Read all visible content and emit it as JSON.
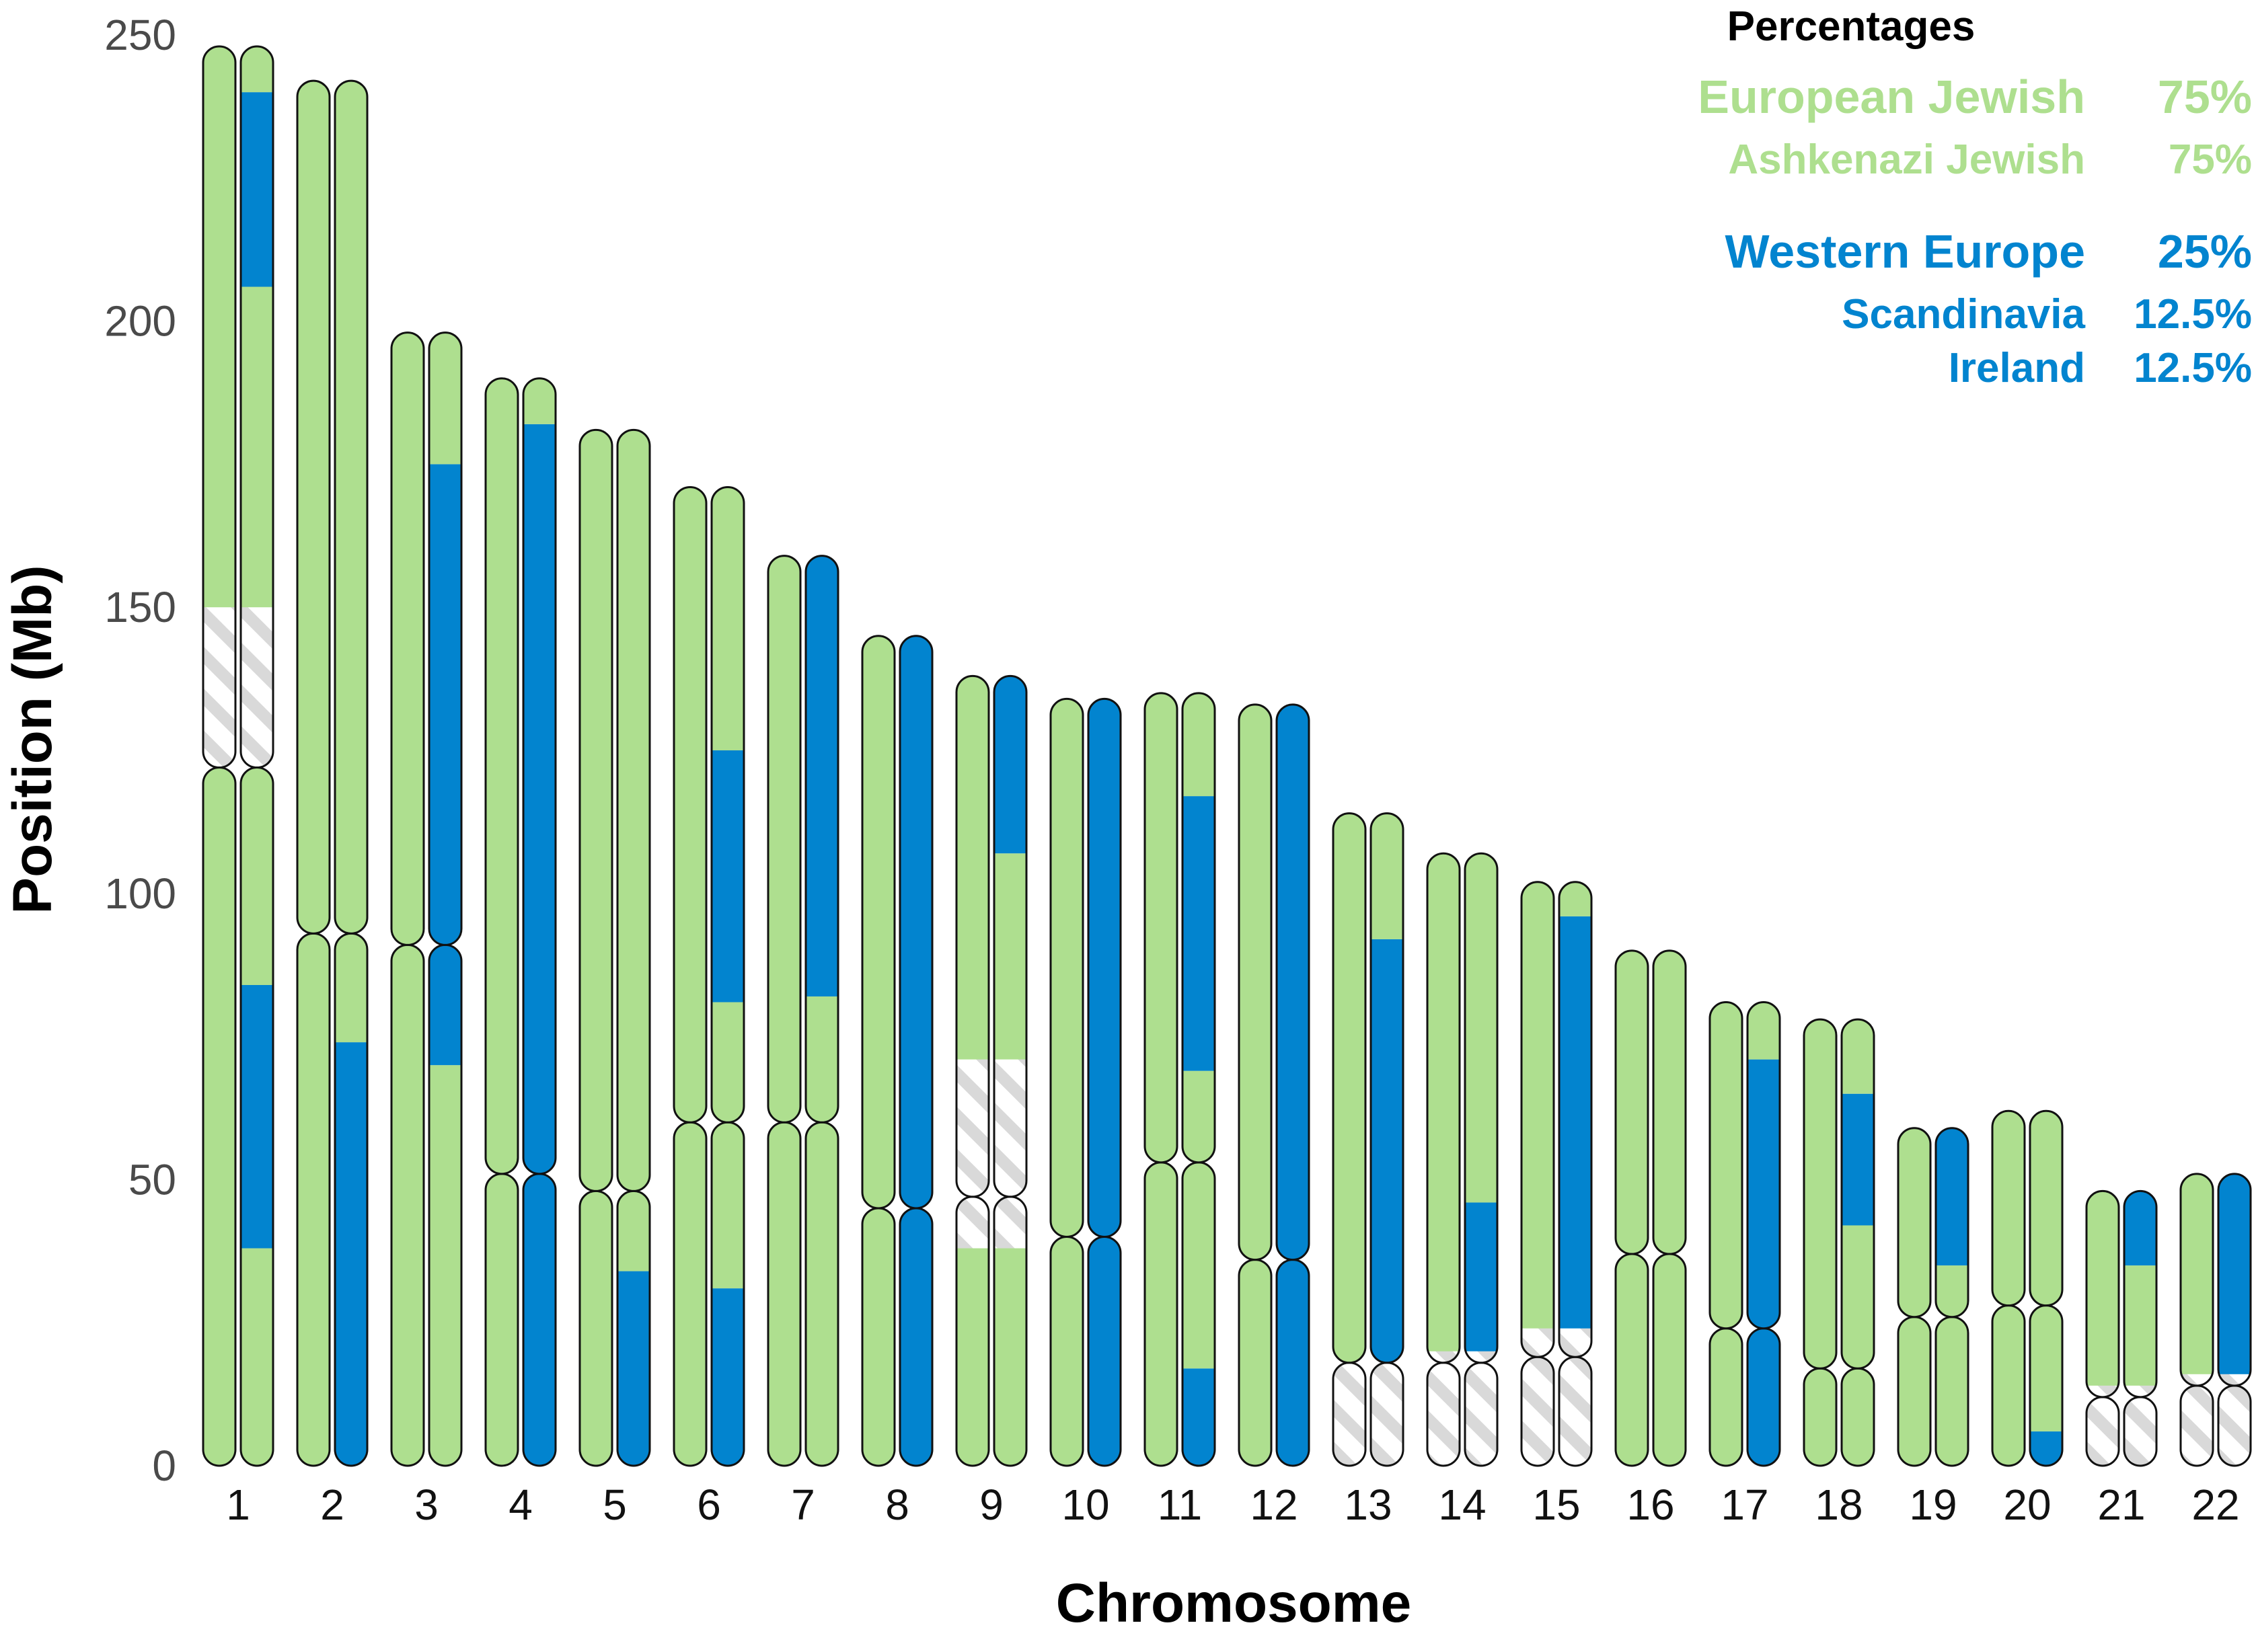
{
  "colors": {
    "european_jewish": "#aedf8f",
    "western_europe": "#0284cf",
    "unassigned_stripe": "#d9d9d9",
    "outline": "#111111",
    "tick_text": "#4a4a4a"
  },
  "chart_data": {
    "type": "chromosome-painting",
    "title": "",
    "xlabel": "Chromosome",
    "ylabel": "Position (Mb)",
    "ylim": [
      0,
      250
    ],
    "yticks": [
      "0",
      "50",
      "100",
      "150",
      "200",
      "250"
    ],
    "legend": {
      "title": "Percentages",
      "placement": "top-right",
      "groups": [
        {
          "color_key": "european_jewish",
          "entries": [
            {
              "label": "European Jewish",
              "value": "75%",
              "level": "region"
            },
            {
              "label": "Ashkenazi Jewish",
              "value": "75%",
              "level": "population"
            }
          ]
        },
        {
          "color_key": "western_europe",
          "entries": [
            {
              "label": "Western Europe",
              "value": "25%",
              "level": "region"
            },
            {
              "label": "Scandinavia",
              "value": "12.5%",
              "level": "population"
            },
            {
              "label": "Ireland",
              "value": "12.5%",
              "level": "population"
            }
          ]
        }
      ]
    },
    "chromosomes": [
      {
        "label": "1",
        "length": 248,
        "centromere": 122,
        "gaps": [
          [
            122,
            150
          ]
        ],
        "copy1": [
          [
            "G",
            0,
            248
          ]
        ],
        "copy2": [
          [
            "G",
            0,
            38
          ],
          [
            "B",
            38,
            84
          ],
          [
            "G",
            84,
            206
          ],
          [
            "B",
            206,
            240
          ],
          [
            "G",
            240,
            248
          ]
        ]
      },
      {
        "label": "2",
        "length": 242,
        "centromere": 93,
        "gaps": [],
        "copy1": [
          [
            "G",
            0,
            242
          ]
        ],
        "copy2": [
          [
            "B",
            0,
            74
          ],
          [
            "G",
            74,
            242
          ]
        ]
      },
      {
        "label": "3",
        "length": 198,
        "centromere": 91,
        "gaps": [],
        "copy1": [
          [
            "G",
            0,
            198
          ]
        ],
        "copy2": [
          [
            "G",
            0,
            70
          ],
          [
            "B",
            70,
            175
          ],
          [
            "G",
            175,
            198
          ]
        ]
      },
      {
        "label": "4",
        "length": 190,
        "centromere": 51,
        "gaps": [],
        "copy1": [
          [
            "G",
            0,
            190
          ]
        ],
        "copy2": [
          [
            "B",
            0,
            182
          ],
          [
            "G",
            182,
            190
          ]
        ]
      },
      {
        "label": "5",
        "length": 181,
        "centromere": 48,
        "gaps": [],
        "copy1": [
          [
            "G",
            0,
            181
          ]
        ],
        "copy2": [
          [
            "B",
            0,
            34
          ],
          [
            "G",
            34,
            181
          ]
        ]
      },
      {
        "label": "6",
        "length": 171,
        "centromere": 60,
        "gaps": [],
        "copy1": [
          [
            "G",
            0,
            171
          ]
        ],
        "copy2": [
          [
            "B",
            0,
            31
          ],
          [
            "G",
            31,
            81
          ],
          [
            "B",
            81,
            125
          ],
          [
            "G",
            125,
            171
          ]
        ]
      },
      {
        "label": "7",
        "length": 159,
        "centromere": 60,
        "gaps": [],
        "copy1": [
          [
            "G",
            0,
            159
          ]
        ],
        "copy2": [
          [
            "G",
            0,
            82
          ],
          [
            "B",
            82,
            159
          ]
        ]
      },
      {
        "label": "8",
        "length": 145,
        "centromere": 45,
        "gaps": [],
        "copy1": [
          [
            "G",
            0,
            145
          ]
        ],
        "copy2": [
          [
            "B",
            0,
            145
          ]
        ]
      },
      {
        "label": "9",
        "length": 138,
        "centromere": 47,
        "gaps": [
          [
            38,
            47
          ],
          [
            47,
            71
          ]
        ],
        "copy1": [
          [
            "G",
            0,
            138
          ]
        ],
        "copy2": [
          [
            "G",
            0,
            107
          ],
          [
            "B",
            107,
            138
          ]
        ]
      },
      {
        "label": "10",
        "length": 134,
        "centromere": 40,
        "gaps": [],
        "copy1": [
          [
            "G",
            0,
            134
          ]
        ],
        "copy2": [
          [
            "B",
            0,
            134
          ]
        ]
      },
      {
        "label": "11",
        "length": 135,
        "centromere": 53,
        "gaps": [],
        "copy1": [
          [
            "G",
            0,
            135
          ]
        ],
        "copy2": [
          [
            "B",
            0,
            17
          ],
          [
            "G",
            17,
            69
          ],
          [
            "B",
            69,
            117
          ],
          [
            "G",
            117,
            135
          ]
        ]
      },
      {
        "label": "12",
        "length": 133,
        "centromere": 36,
        "gaps": [],
        "copy1": [
          [
            "G",
            0,
            133
          ]
        ],
        "copy2": [
          [
            "B",
            0,
            133
          ]
        ]
      },
      {
        "label": "13",
        "length": 114,
        "centromere": 18,
        "gaps": [
          [
            0,
            18
          ]
        ],
        "copy1": [
          [
            "G",
            0,
            114
          ]
        ],
        "copy2": [
          [
            "B",
            0,
            92
          ],
          [
            "G",
            92,
            114
          ]
        ]
      },
      {
        "label": "14",
        "length": 107,
        "centromere": 18,
        "gaps": [
          [
            0,
            20
          ]
        ],
        "copy1": [
          [
            "G",
            0,
            107
          ]
        ],
        "copy2": [
          [
            "B",
            0,
            46
          ],
          [
            "G",
            46,
            107
          ]
        ]
      },
      {
        "label": "15",
        "length": 102,
        "centromere": 19,
        "gaps": [
          [
            0,
            24
          ]
        ],
        "copy1": [
          [
            "G",
            0,
            102
          ]
        ],
        "copy2": [
          [
            "B",
            0,
            96
          ],
          [
            "G",
            96,
            102
          ]
        ]
      },
      {
        "label": "16",
        "length": 90,
        "centromere": 37,
        "gaps": [],
        "copy1": [
          [
            "G",
            0,
            90
          ]
        ],
        "copy2": [
          [
            "G",
            0,
            90
          ]
        ]
      },
      {
        "label": "17",
        "length": 81,
        "centromere": 24,
        "gaps": [],
        "copy1": [
          [
            "G",
            0,
            81
          ]
        ],
        "copy2": [
          [
            "B",
            0,
            71
          ],
          [
            "G",
            71,
            81
          ]
        ]
      },
      {
        "label": "18",
        "length": 78,
        "centromere": 17,
        "gaps": [],
        "copy1": [
          [
            "G",
            0,
            78
          ]
        ],
        "copy2": [
          [
            "G",
            0,
            42
          ],
          [
            "B",
            42,
            65
          ],
          [
            "G",
            65,
            78
          ]
        ]
      },
      {
        "label": "19",
        "length": 59,
        "centromere": 26,
        "gaps": [],
        "copy1": [
          [
            "G",
            0,
            59
          ]
        ],
        "copy2": [
          [
            "G",
            0,
            35
          ],
          [
            "B",
            35,
            59
          ]
        ]
      },
      {
        "label": "20",
        "length": 62,
        "centromere": 28,
        "gaps": [],
        "copy1": [
          [
            "G",
            0,
            62
          ]
        ],
        "copy2": [
          [
            "B",
            0,
            6
          ],
          [
            "G",
            6,
            62
          ]
        ]
      },
      {
        "label": "21",
        "length": 48,
        "centromere": 12,
        "gaps": [
          [
            0,
            14
          ]
        ],
        "copy1": [
          [
            "G",
            0,
            48
          ]
        ],
        "copy2": [
          [
            "G",
            0,
            35
          ],
          [
            "B",
            35,
            48
          ]
        ]
      },
      {
        "label": "22",
        "length": 51,
        "centromere": 14,
        "gaps": [
          [
            0,
            16
          ]
        ],
        "copy1": [
          [
            "G",
            0,
            51
          ]
        ],
        "copy2": [
          [
            "B",
            0,
            51
          ]
        ]
      }
    ]
  }
}
